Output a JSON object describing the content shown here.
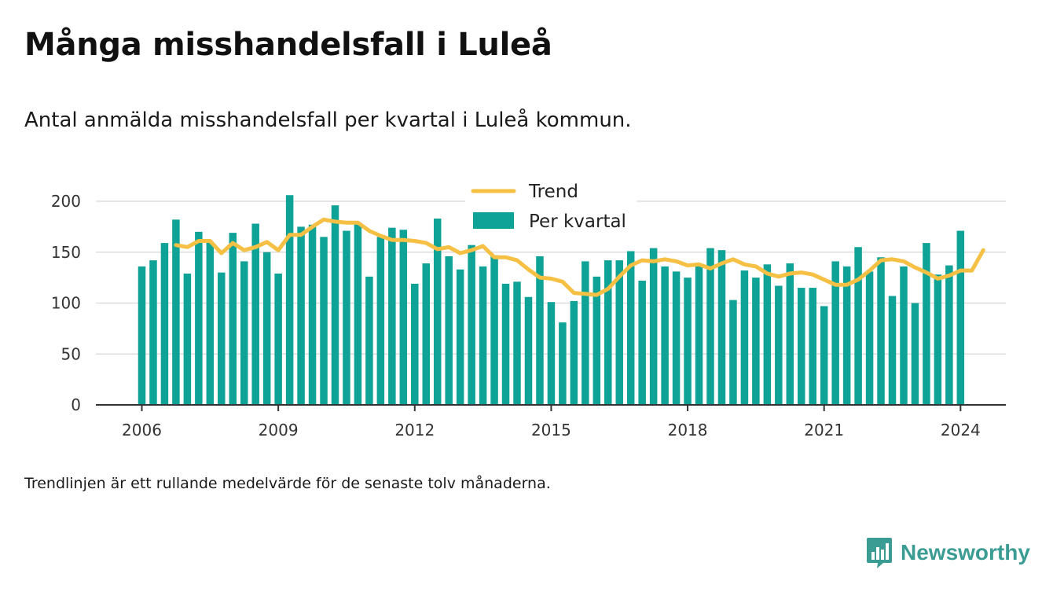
{
  "title": "Många misshandelsfall i Luleå",
  "subtitle": "Antal anmälda misshandelsfall per kvartal i Luleå kommun.",
  "note": "Trendlinjen är ett rullande medelvärde för de senaste tolv månaderna.",
  "brand": {
    "name": "Newsworthy",
    "icon": "newsworthy-logo-icon",
    "color": "#3a9c92"
  },
  "chart_data": {
    "type": "bar",
    "x_start": "2006-Q1",
    "x_ticks": [
      "2006",
      "2009",
      "2012",
      "2015",
      "2018",
      "2021",
      "2024"
    ],
    "y_ticks": [
      0,
      50,
      100,
      150,
      200
    ],
    "ylim": [
      0,
      215
    ],
    "grid": true,
    "legend_position": "top-center",
    "series": [
      {
        "name": "Per kvartal",
        "type": "bar",
        "color": "#0ea396",
        "values": [
          136,
          142,
          159,
          182,
          129,
          170,
          160,
          130,
          169,
          141,
          178,
          150,
          129,
          206,
          175,
          177,
          165,
          196,
          171,
          179,
          126,
          165,
          174,
          172,
          119,
          139,
          183,
          146,
          133,
          157,
          136,
          147,
          119,
          121,
          106,
          146,
          101,
          81,
          102,
          141,
          126,
          142,
          142,
          151,
          122,
          154,
          136,
          131,
          125,
          137,
          154,
          152,
          103,
          132,
          125,
          138,
          117,
          139,
          115,
          115,
          97,
          141,
          136,
          155,
          131,
          145,
          107,
          136,
          100,
          159,
          128,
          137,
          171
        ]
      },
      {
        "name": "Trend",
        "type": "line",
        "color": "#f5c043",
        "start_index": 3,
        "values": [
          157,
          155,
          161,
          161,
          149,
          159,
          152,
          155,
          160,
          152,
          167,
          167,
          175,
          182,
          180,
          179,
          179,
          171,
          166,
          162,
          162,
          161,
          159,
          153,
          155,
          149,
          152,
          156,
          145,
          145,
          142,
          133,
          125,
          124,
          121,
          110,
          109,
          108,
          114,
          126,
          137,
          142,
          141,
          143,
          141,
          137,
          138,
          134,
          139,
          143,
          138,
          136,
          129,
          126,
          129,
          130,
          128,
          123,
          118,
          118,
          123,
          132,
          142,
          143,
          141,
          135,
          130,
          124,
          127,
          132,
          132,
          152
        ]
      }
    ]
  }
}
